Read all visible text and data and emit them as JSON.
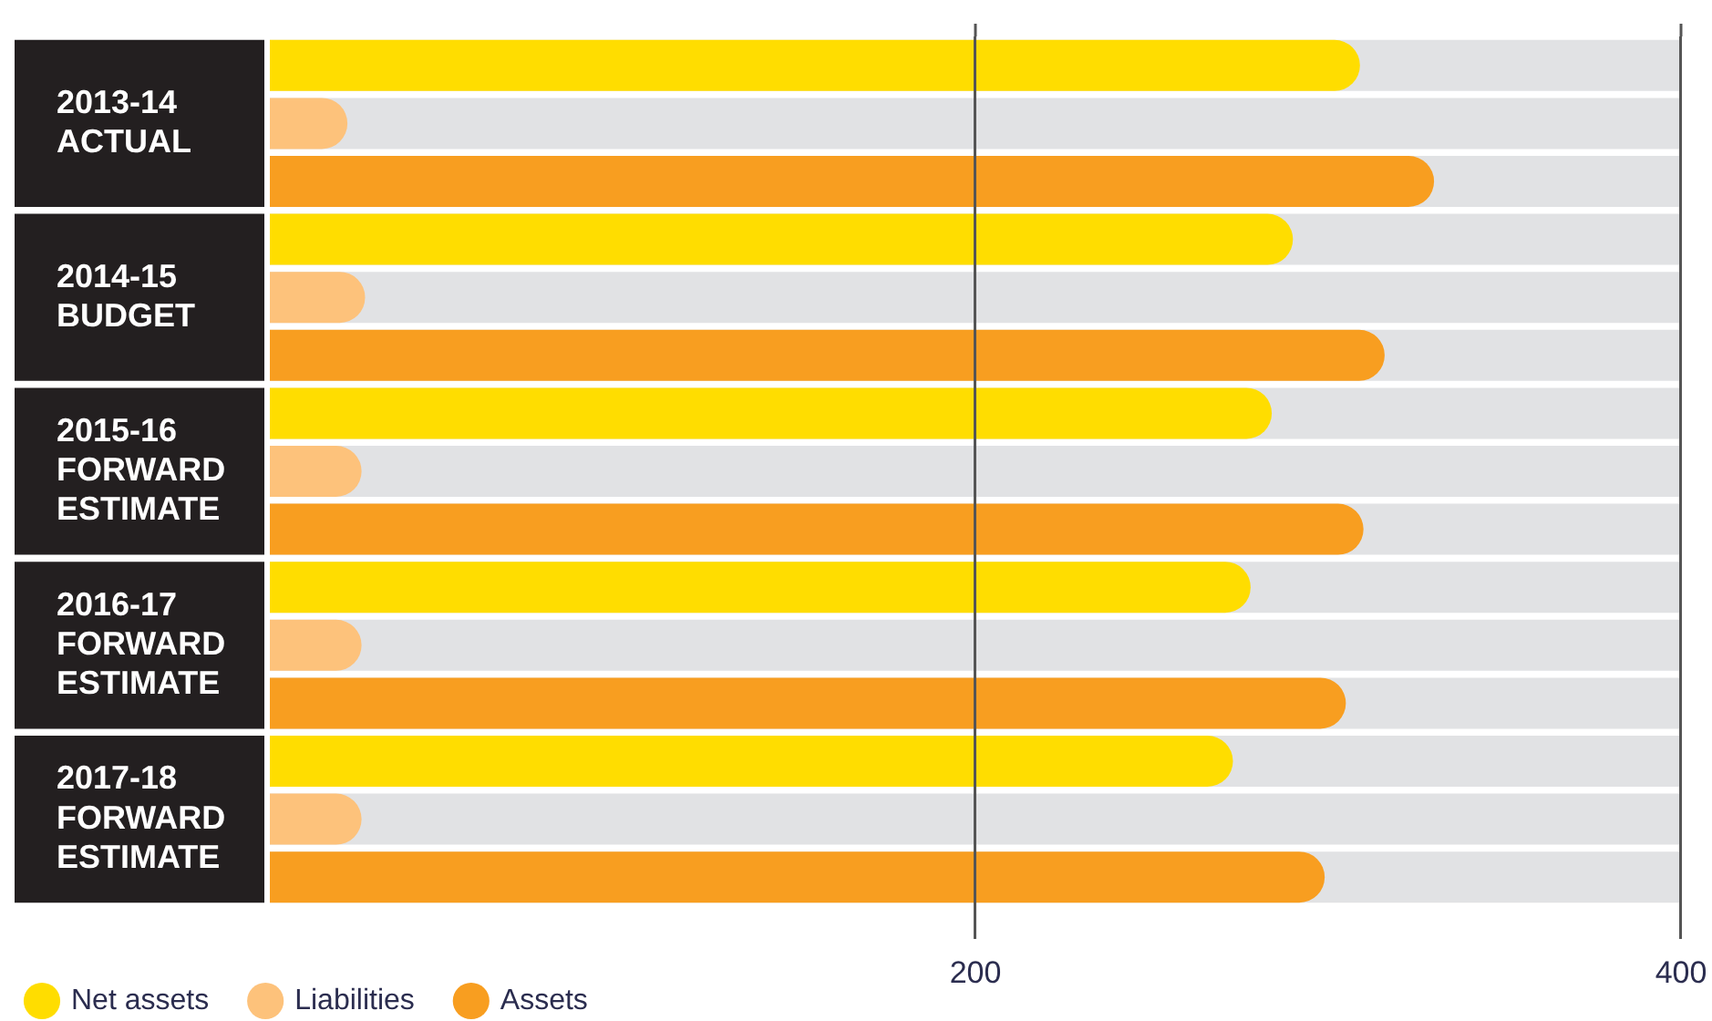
{
  "chart_data": {
    "type": "bar",
    "orientation": "horizontal",
    "categories": [
      "2013-14 ACTUAL",
      "2014-15 BUDGET",
      "2015-16 FORWARD ESTIMATE",
      "2016-17 FORWARD ESTIMATE",
      "2017-18 FORWARD ESTIMATE"
    ],
    "series": [
      {
        "name": "Net assets",
        "color": "#ffdd00",
        "values": [
          309,
          290,
          284,
          278,
          273
        ]
      },
      {
        "name": "Liabilities",
        "color": "#fdc27b",
        "values": [
          22,
          27,
          26,
          26,
          26
        ]
      },
      {
        "name": "Assets",
        "color": "#f89e20",
        "values": [
          330,
          316,
          310,
          305,
          299
        ]
      }
    ],
    "xlim": [
      0,
      400
    ],
    "xticks": [
      200,
      400
    ],
    "grid": "x",
    "legend": "bottom left"
  }
}
